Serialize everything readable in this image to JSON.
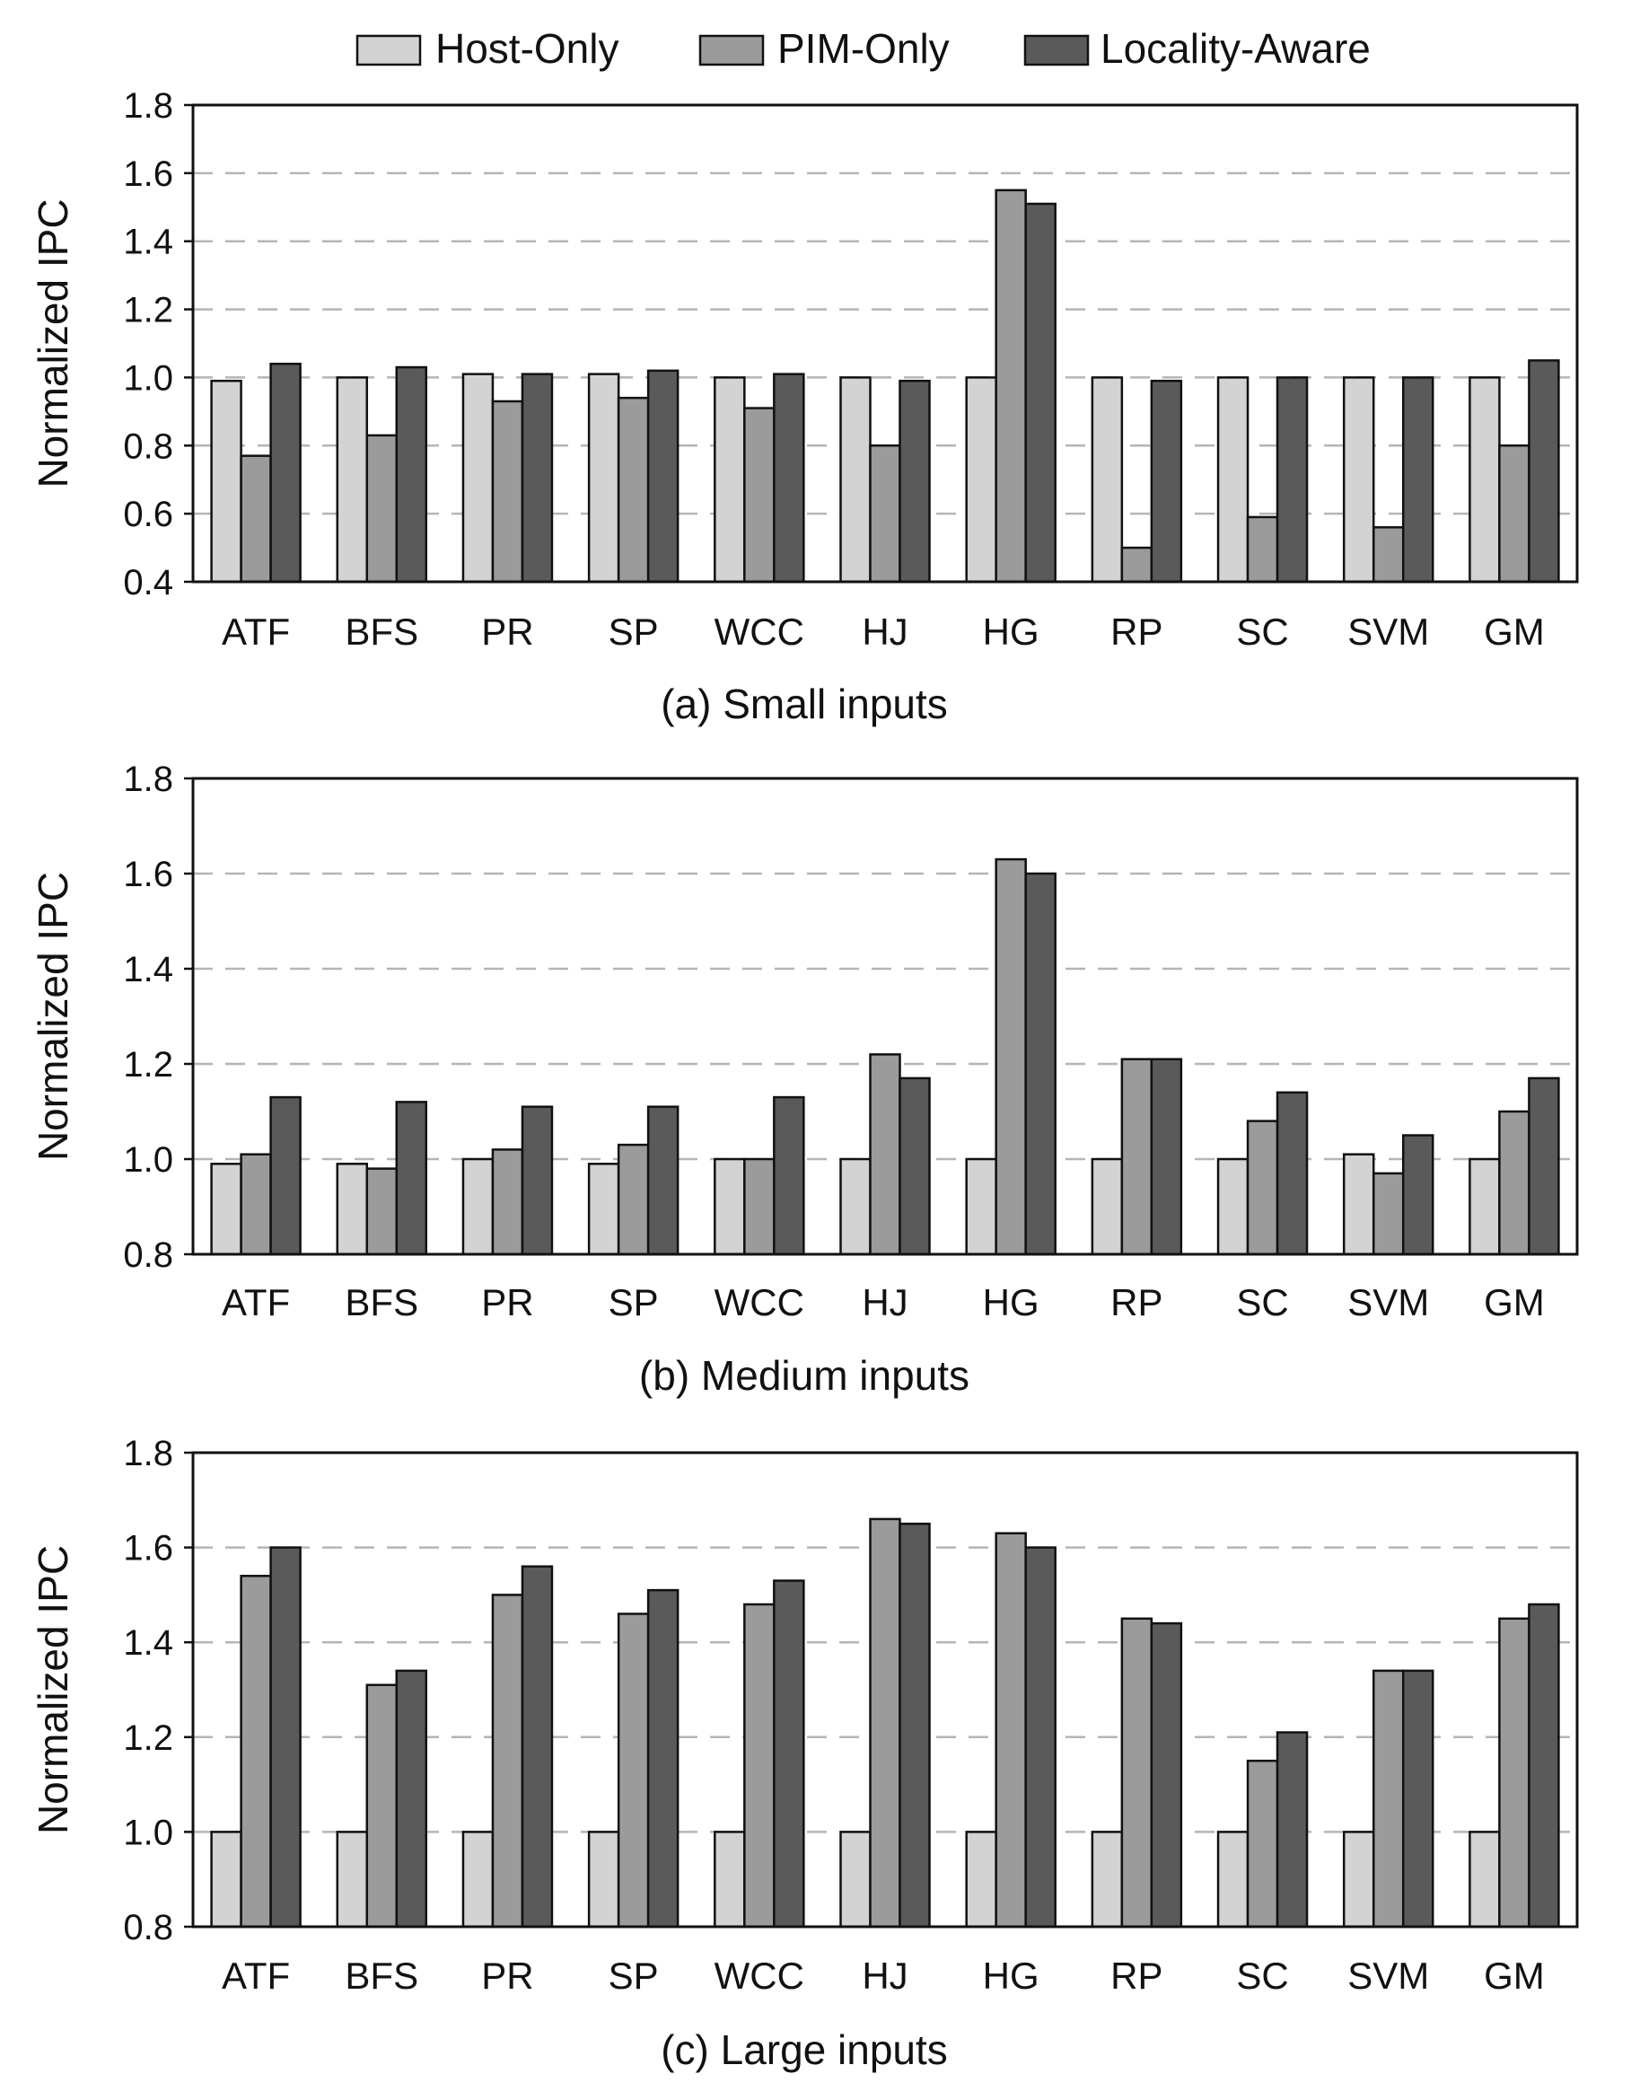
{
  "legend": [
    {
      "name": "Host-Only",
      "color": "#d3d3d3"
    },
    {
      "name": "PIM-Only",
      "color": "#9b9b9b"
    },
    {
      "name": "Locality-Aware",
      "color": "#5a5a5a"
    }
  ],
  "colors": {
    "stroke": "#111111",
    "grid": "#b5b5b5",
    "text": "#111111"
  },
  "chart_data": [
    {
      "type": "bar",
      "title": "(a) Small inputs",
      "xlabel": "",
      "ylabel": "Normalized IPC",
      "ylim": [
        0.4,
        1.8
      ],
      "yticks": [
        "0.4",
        "0.6",
        "0.8",
        "1.0",
        "1.2",
        "1.4",
        "1.6",
        "1.8"
      ],
      "grid": true,
      "legend_position": "top-center",
      "categories": [
        "ATF",
        "BFS",
        "PR",
        "SP",
        "WCC",
        "HJ",
        "HG",
        "RP",
        "SC",
        "SVM",
        "GM"
      ],
      "series": [
        {
          "name": "Host-Only",
          "values": [
            0.99,
            1.0,
            1.01,
            1.01,
            1.0,
            1.0,
            1.0,
            1.0,
            1.0,
            1.0,
            1.0
          ]
        },
        {
          "name": "PIM-Only",
          "values": [
            0.77,
            0.83,
            0.93,
            0.94,
            0.91,
            0.8,
            1.55,
            0.5,
            0.59,
            0.56,
            0.8
          ]
        },
        {
          "name": "Locality-Aware",
          "values": [
            1.04,
            1.03,
            1.01,
            1.02,
            1.01,
            0.99,
            1.51,
            0.99,
            1.0,
            1.0,
            1.05
          ]
        }
      ]
    },
    {
      "type": "bar",
      "title": "(b) Medium inputs",
      "xlabel": "",
      "ylabel": "Normalized IPC",
      "ylim": [
        0.8,
        1.8
      ],
      "yticks": [
        "0.8",
        "1.0",
        "1.2",
        "1.4",
        "1.6",
        "1.8"
      ],
      "grid": true,
      "categories": [
        "ATF",
        "BFS",
        "PR",
        "SP",
        "WCC",
        "HJ",
        "HG",
        "RP",
        "SC",
        "SVM",
        "GM"
      ],
      "series": [
        {
          "name": "Host-Only",
          "values": [
            0.99,
            0.99,
            1.0,
            0.99,
            1.0,
            1.0,
            1.0,
            1.0,
            1.0,
            1.01,
            1.0
          ]
        },
        {
          "name": "PIM-Only",
          "values": [
            1.01,
            0.98,
            1.02,
            1.03,
            1.0,
            1.22,
            1.63,
            1.21,
            1.08,
            0.97,
            1.1
          ]
        },
        {
          "name": "Locality-Aware",
          "values": [
            1.13,
            1.12,
            1.11,
            1.11,
            1.13,
            1.17,
            1.6,
            1.21,
            1.14,
            1.05,
            1.17
          ]
        }
      ]
    },
    {
      "type": "bar",
      "title": "(c) Large inputs",
      "xlabel": "",
      "ylabel": "Normalized IPC",
      "ylim": [
        0.8,
        1.8
      ],
      "yticks": [
        "0.8",
        "1.0",
        "1.2",
        "1.4",
        "1.6",
        "1.8"
      ],
      "grid": true,
      "categories": [
        "ATF",
        "BFS",
        "PR",
        "SP",
        "WCC",
        "HJ",
        "HG",
        "RP",
        "SC",
        "SVM",
        "GM"
      ],
      "series": [
        {
          "name": "Host-Only",
          "values": [
            1.0,
            1.0,
            1.0,
            1.0,
            1.0,
            1.0,
            1.0,
            1.0,
            1.0,
            1.0,
            1.0
          ]
        },
        {
          "name": "PIM-Only",
          "values": [
            1.54,
            1.31,
            1.5,
            1.46,
            1.48,
            1.66,
            1.63,
            1.45,
            1.15,
            1.34,
            1.45
          ]
        },
        {
          "name": "Locality-Aware",
          "values": [
            1.6,
            1.34,
            1.56,
            1.51,
            1.53,
            1.65,
            1.6,
            1.44,
            1.21,
            1.34,
            1.48
          ]
        }
      ]
    }
  ]
}
